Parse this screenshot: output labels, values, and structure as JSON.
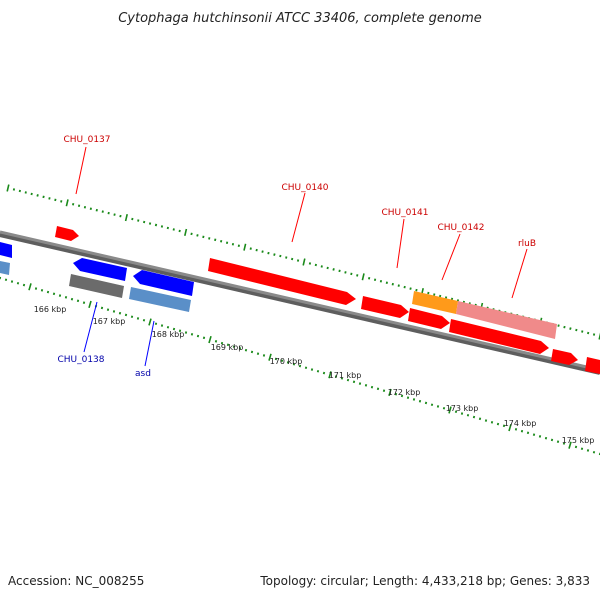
{
  "title": "Cytophaga hutchinsonii ATCC 33406, complete genome",
  "footer": {
    "accession": "Accession: NC_008255",
    "summary": "Topology: circular; Length: 4,433,218 bp; Genes: 3,833"
  },
  "colors": {
    "backbone": "#8a8a8a",
    "tick": "#1a8a1a",
    "forward_gene": "#ff0000",
    "forward_label": "#cc0000",
    "reverse_gene": "#0000ff",
    "reverse_label": "#0000aa",
    "rna_gene": "#5a8fc8",
    "pseudo_gene": "#6b6b6b",
    "highlight_orange": "#ff9a1a",
    "highlight_pink": "#f08a8a"
  },
  "scale_labels": [
    "166 kbp",
    "167 kbp",
    "168 kbp",
    "169 kbp",
    "170 kbp",
    "171 kbp",
    "172 kbp",
    "173 kbp",
    "174 kbp",
    "175 kbp"
  ],
  "forward_labels": [
    "CHU_0137",
    "CHU_0140",
    "CHU_0141",
    "CHU_0142",
    "rluB"
  ],
  "reverse_labels": [
    "CHU_0138",
    "asd"
  ]
}
